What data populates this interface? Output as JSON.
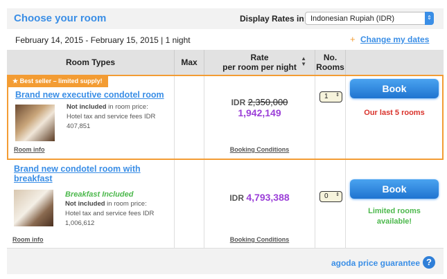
{
  "header": {
    "title": "Choose your room",
    "rates_label": "Display Rates in:",
    "currency": "Indonesian Rupiah (IDR)"
  },
  "dates": {
    "range": "February 14, 2015 - February 15, 2015 | 1 night",
    "change_label": "Change my dates"
  },
  "table": {
    "columns": [
      "Room Types",
      "Max",
      "Rate",
      "per room per night",
      "No.",
      "Rooms"
    ]
  },
  "rooms": [
    {
      "badge": "Best seller – limited supply!",
      "name": "Brand new executive condotel room",
      "not_included": "Not included",
      "note_rest": " in room price: Hotel tax and service fees IDR 407,851",
      "room_info": "Room info",
      "currency": "IDR",
      "old_price": "2,350,000",
      "price": "1,942,149",
      "booking_conditions": "Booking Conditions",
      "qty": "1",
      "book": "Book",
      "availability": "Our last 5 rooms",
      "availability_color": "#d9322b"
    },
    {
      "name": "Brand new condotel room with breakfast",
      "breakfast": "Breakfast Included",
      "not_included": "Not included",
      "note_rest": " in room price: Hotel tax and service fees IDR 1,006,612",
      "room_info": "Room info",
      "currency": "IDR",
      "price": "4,793,388",
      "booking_conditions": "Booking Conditions",
      "qty": "0",
      "book": "Book",
      "availability": "Limited rooms available!",
      "availability_color": "#4cb84c"
    }
  ],
  "footer": {
    "guarantee": "agoda price guarantee"
  }
}
